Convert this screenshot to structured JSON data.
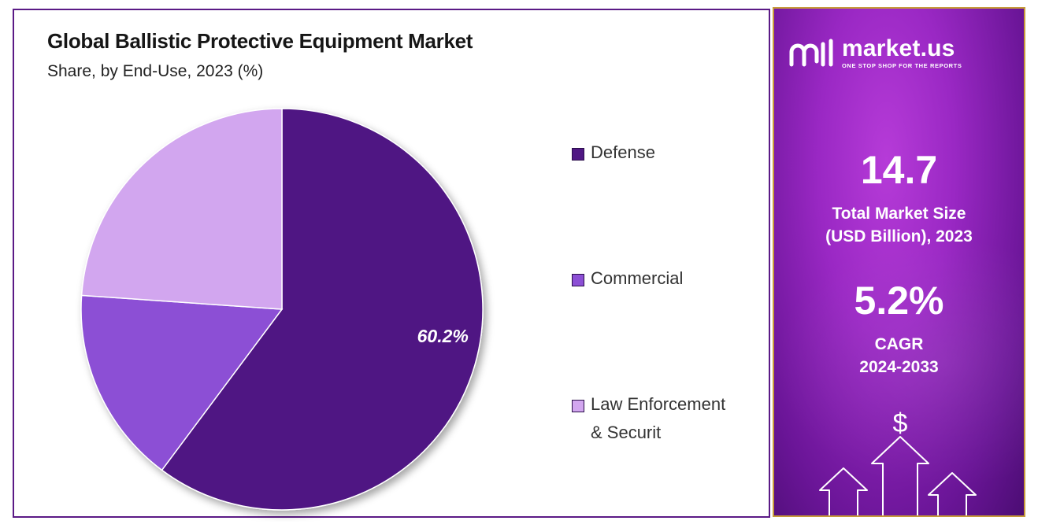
{
  "chart_data": {
    "type": "pie",
    "title": "Global Ballistic Protective Equipment Market",
    "subtitle": "Share, by End-Use, 2023 (%)",
    "categories": [
      "Defense",
      "Commercial",
      "Law Enforcement & Securit"
    ],
    "values": [
      60.2,
      15.9,
      23.9
    ],
    "data_labels": [
      "60.2%",
      "",
      ""
    ],
    "colors": [
      "#4f1783",
      "#8c4fd5",
      "#d2a6ef"
    ],
    "legend_position": "right"
  },
  "legend": {
    "items": [
      {
        "label": "Defense",
        "color": "#4f1783"
      },
      {
        "label": "Commercial",
        "color": "#8c4fd5"
      },
      {
        "label_line1": "Law Enforcement",
        "label_line2": "& Securit",
        "color": "#d2a6ef"
      }
    ]
  },
  "sidebar": {
    "logo_name": "market.us",
    "logo_tagline": "ONE STOP SHOP FOR THE REPORTS",
    "market_size_value": "14.7",
    "market_size_label_line1": "Total Market Size",
    "market_size_label_line2": "(USD Billion), 2023",
    "cagr_value": "5.2%",
    "cagr_label_line1": "CAGR",
    "cagr_label_line2": "2024-2033",
    "dollar_icon": "$"
  }
}
